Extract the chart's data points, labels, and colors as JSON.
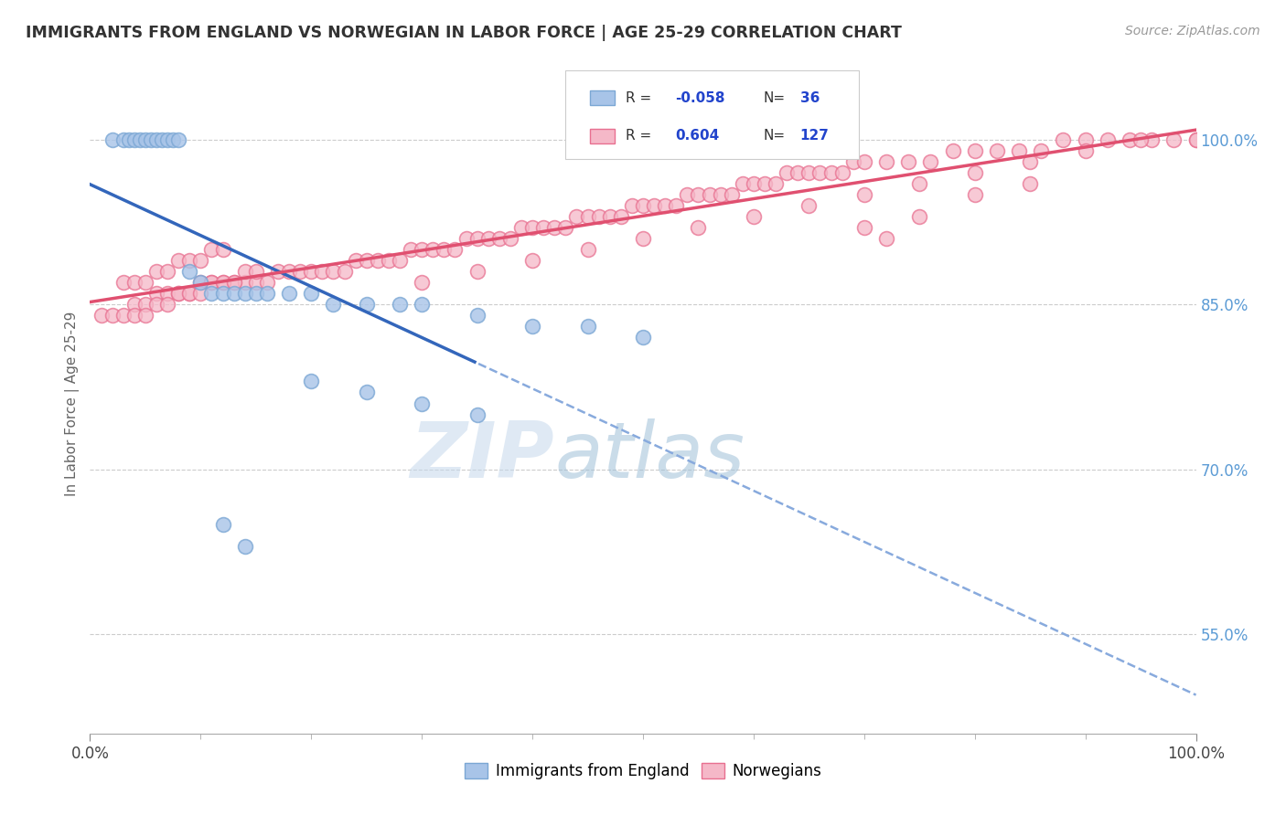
{
  "title": "IMMIGRANTS FROM ENGLAND VS NORWEGIAN IN LABOR FORCE | AGE 25-29 CORRELATION CHART",
  "source_text": "Source: ZipAtlas.com",
  "ylabel": "In Labor Force | Age 25-29",
  "y_tick_labels": [
    "55.0%",
    "70.0%",
    "85.0%",
    "100.0%"
  ],
  "y_tick_values": [
    0.55,
    0.7,
    0.85,
    1.0
  ],
  "xlim": [
    0.0,
    1.0
  ],
  "ylim": [
    0.46,
    1.06
  ],
  "legend_r_england": "-0.058",
  "legend_n_england": "36",
  "legend_r_norwegian": "0.604",
  "legend_n_norwegian": "127",
  "england_scatter_color": "#a8c4e8",
  "england_edge_color": "#7ba7d4",
  "norwegian_scatter_color": "#f5b8c8",
  "norwegian_edge_color": "#e87090",
  "england_solid_line_color": "#3366bb",
  "england_dash_line_color": "#88aadd",
  "norwegian_line_color": "#e05070",
  "title_color": "#333333",
  "right_label_color": "#5b9bd5",
  "source_color": "#999999",
  "watermark_color": "#d0e4f0",
  "england_x": [
    0.02,
    0.03,
    0.035,
    0.04,
    0.045,
    0.05,
    0.055,
    0.06,
    0.065,
    0.07,
    0.075,
    0.08,
    0.09,
    0.1,
    0.11,
    0.12,
    0.13,
    0.14,
    0.15,
    0.16,
    0.18,
    0.2,
    0.22,
    0.25,
    0.28,
    0.3,
    0.35,
    0.4,
    0.45,
    0.5,
    0.12,
    0.14,
    0.2,
    0.25,
    0.3,
    0.35
  ],
  "england_y": [
    1.0,
    1.0,
    1.0,
    1.0,
    1.0,
    1.0,
    1.0,
    1.0,
    1.0,
    1.0,
    1.0,
    1.0,
    0.88,
    0.87,
    0.86,
    0.86,
    0.86,
    0.86,
    0.86,
    0.86,
    0.86,
    0.86,
    0.85,
    0.85,
    0.85,
    0.85,
    0.84,
    0.83,
    0.83,
    0.82,
    0.65,
    0.63,
    0.78,
    0.77,
    0.76,
    0.75
  ],
  "norwegian_x": [
    0.01,
    0.02,
    0.03,
    0.04,
    0.05,
    0.06,
    0.07,
    0.08,
    0.09,
    0.1,
    0.11,
    0.12,
    0.13,
    0.14,
    0.15,
    0.16,
    0.17,
    0.18,
    0.19,
    0.2,
    0.21,
    0.22,
    0.23,
    0.24,
    0.25,
    0.26,
    0.27,
    0.28,
    0.29,
    0.3,
    0.31,
    0.32,
    0.33,
    0.34,
    0.35,
    0.36,
    0.37,
    0.38,
    0.39,
    0.4,
    0.41,
    0.42,
    0.43,
    0.44,
    0.45,
    0.46,
    0.47,
    0.48,
    0.49,
    0.5,
    0.51,
    0.52,
    0.53,
    0.54,
    0.55,
    0.56,
    0.57,
    0.58,
    0.59,
    0.6,
    0.61,
    0.62,
    0.63,
    0.64,
    0.65,
    0.66,
    0.67,
    0.68,
    0.69,
    0.7,
    0.72,
    0.74,
    0.76,
    0.78,
    0.8,
    0.82,
    0.84,
    0.86,
    0.88,
    0.9,
    0.92,
    0.94,
    0.96,
    0.98,
    1.0,
    0.04,
    0.05,
    0.06,
    0.07,
    0.08,
    0.09,
    0.1,
    0.11,
    0.12,
    0.13,
    0.14,
    0.15,
    0.03,
    0.04,
    0.05,
    0.06,
    0.07,
    0.08,
    0.09,
    0.1,
    0.11,
    0.12,
    0.3,
    0.35,
    0.4,
    0.45,
    0.5,
    0.55,
    0.6,
    0.65,
    0.7,
    0.75,
    0.8,
    0.85,
    0.9,
    0.95,
    1.0,
    0.7,
    0.75,
    0.8,
    0.85,
    0.72
  ],
  "norwegian_y": [
    0.84,
    0.84,
    0.84,
    0.85,
    0.85,
    0.86,
    0.86,
    0.86,
    0.86,
    0.87,
    0.87,
    0.87,
    0.87,
    0.87,
    0.87,
    0.87,
    0.88,
    0.88,
    0.88,
    0.88,
    0.88,
    0.88,
    0.88,
    0.89,
    0.89,
    0.89,
    0.89,
    0.89,
    0.9,
    0.9,
    0.9,
    0.9,
    0.9,
    0.91,
    0.91,
    0.91,
    0.91,
    0.91,
    0.92,
    0.92,
    0.92,
    0.92,
    0.92,
    0.93,
    0.93,
    0.93,
    0.93,
    0.93,
    0.94,
    0.94,
    0.94,
    0.94,
    0.94,
    0.95,
    0.95,
    0.95,
    0.95,
    0.95,
    0.96,
    0.96,
    0.96,
    0.96,
    0.97,
    0.97,
    0.97,
    0.97,
    0.97,
    0.97,
    0.98,
    0.98,
    0.98,
    0.98,
    0.98,
    0.99,
    0.99,
    0.99,
    0.99,
    0.99,
    1.0,
    1.0,
    1.0,
    1.0,
    1.0,
    1.0,
    1.0,
    0.84,
    0.84,
    0.85,
    0.85,
    0.86,
    0.86,
    0.86,
    0.87,
    0.87,
    0.87,
    0.88,
    0.88,
    0.87,
    0.87,
    0.87,
    0.88,
    0.88,
    0.89,
    0.89,
    0.89,
    0.9,
    0.9,
    0.87,
    0.88,
    0.89,
    0.9,
    0.91,
    0.92,
    0.93,
    0.94,
    0.95,
    0.96,
    0.97,
    0.98,
    0.99,
    1.0,
    1.0,
    0.92,
    0.93,
    0.95,
    0.96,
    0.91
  ]
}
